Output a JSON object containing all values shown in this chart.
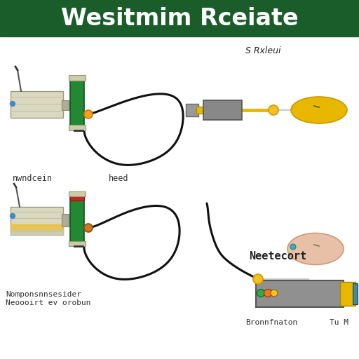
{
  "title": "Wesitmim Rceiate",
  "title_bg": "#1a5c2a",
  "title_color": "#ffffff",
  "bg_color": "#ffffff",
  "subtitle_top_right": "S Rxleui",
  "label_tl": "nwndcein",
  "label_tm": "heed",
  "label_bl": "Nomponsnnsesider\nNeoooirt ev orobun",
  "label_bm": "Bronnfnaton",
  "label_br": "Tu M",
  "label_neetecort": "Neetecort"
}
